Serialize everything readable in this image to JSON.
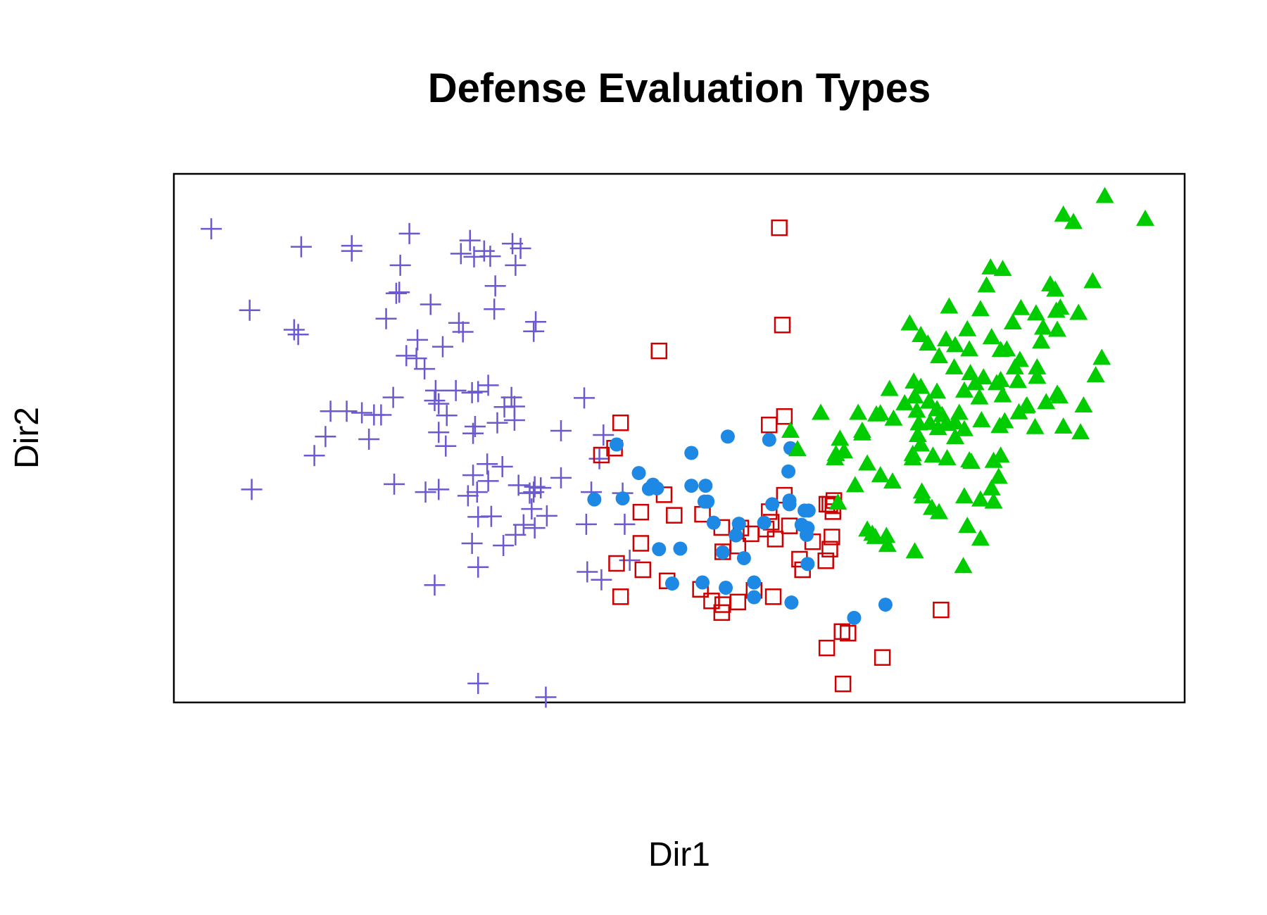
{
  "chart_data": {
    "type": "scatter",
    "title": "Defense Evaluation Types",
    "xlabel": "Dir1",
    "ylabel": "Dir2",
    "xlim": [
      0,
      1000
    ],
    "ylim": [
      0,
      1000
    ],
    "axes_ticks_shown": false,
    "grid": false,
    "legend": "none",
    "series": [
      {
        "marker": "plus",
        "color": "#6A5ACD",
        "points": [
          [
            37,
            896
          ],
          [
            126,
            862
          ],
          [
            176,
            864
          ],
          [
            176,
            854
          ],
          [
            233,
            887
          ],
          [
            284,
            849
          ],
          [
            293,
            874
          ],
          [
            297,
            843
          ],
          [
            307,
            854
          ],
          [
            313,
            844
          ],
          [
            335,
            868
          ],
          [
            343,
            859
          ],
          [
            338,
            827
          ],
          [
            224,
            827
          ],
          [
            220,
            774
          ],
          [
            223,
            776
          ],
          [
            318,
            788
          ],
          [
            75,
            742
          ],
          [
            119,
            705
          ],
          [
            123,
            696
          ],
          [
            210,
            726
          ],
          [
            254,
            753
          ],
          [
            266,
            673
          ],
          [
            282,
            718
          ],
          [
            286,
            701
          ],
          [
            317,
            744
          ],
          [
            358,
            720
          ],
          [
            356,
            702
          ],
          [
            241,
            686
          ],
          [
            230,
            656
          ],
          [
            240,
            651
          ],
          [
            248,
            631
          ],
          [
            279,
            590
          ],
          [
            259,
            590
          ],
          [
            258,
            571
          ],
          [
            262,
            565
          ],
          [
            295,
            586
          ],
          [
            301,
            588
          ],
          [
            311,
            600
          ],
          [
            337,
            560
          ],
          [
            327,
            559
          ],
          [
            296,
            509
          ],
          [
            320,
            529
          ],
          [
            337,
            534
          ],
          [
            334,
            577
          ],
          [
            270,
            543
          ],
          [
            262,
            511
          ],
          [
            269,
            485
          ],
          [
            217,
            577
          ],
          [
            205,
            544
          ],
          [
            186,
            548
          ],
          [
            198,
            544
          ],
          [
            193,
            498
          ],
          [
            171,
            551
          ],
          [
            155,
            551
          ],
          [
            150,
            503
          ],
          [
            139,
            467
          ],
          [
            77,
            403
          ],
          [
            218,
            413
          ],
          [
            249,
            398
          ],
          [
            262,
            403
          ],
          [
            291,
            391
          ],
          [
            300,
            398
          ],
          [
            310,
            451
          ],
          [
            325,
            446
          ],
          [
            341,
            411
          ],
          [
            356,
            398
          ],
          [
            383,
            425
          ],
          [
            363,
            406
          ],
          [
            369,
            353
          ],
          [
            357,
            330
          ],
          [
            346,
            336
          ],
          [
            301,
            351
          ],
          [
            295,
            301
          ],
          [
            314,
            352
          ],
          [
            258,
            222
          ],
          [
            301,
            256
          ],
          [
            326,
            297
          ],
          [
            338,
            317
          ],
          [
            354,
            366
          ],
          [
            383,
            514
          ],
          [
            421,
            461
          ],
          [
            425,
            506
          ],
          [
            406,
            576
          ],
          [
            413,
            398
          ],
          [
            408,
            337
          ],
          [
            444,
            396
          ],
          [
            446,
            337
          ],
          [
            451,
            269
          ],
          [
            409,
            247
          ],
          [
            423,
            232
          ],
          [
            301,
            36
          ],
          [
            368,
            10
          ],
          [
            298,
            522
          ],
          [
            296,
            430
          ],
          [
            311,
            419
          ],
          [
            357,
            408
          ],
          [
            352,
            396
          ]
        ]
      },
      {
        "marker": "square",
        "color": "#CC0000",
        "points": [
          [
            599,
            898
          ],
          [
            602,
            714
          ],
          [
            480,
            665
          ],
          [
            442,
            529
          ],
          [
            423,
            468
          ],
          [
            436,
            481
          ],
          [
            485,
            393
          ],
          [
            462,
            360
          ],
          [
            495,
            354
          ],
          [
            462,
            301
          ],
          [
            438,
            263
          ],
          [
            464,
            251
          ],
          [
            488,
            230
          ],
          [
            442,
            200
          ],
          [
            523,
            356
          ],
          [
            589,
            525
          ],
          [
            604,
            541
          ],
          [
            542,
            331
          ],
          [
            561,
            330
          ],
          [
            571,
            319
          ],
          [
            543,
            285
          ],
          [
            558,
            296
          ],
          [
            589,
            361
          ],
          [
            619,
            271
          ],
          [
            646,
            375
          ],
          [
            652,
            372
          ],
          [
            604,
            392
          ],
          [
            649,
            375
          ],
          [
            652,
            361
          ],
          [
            651,
            313
          ],
          [
            586,
            328
          ],
          [
            591,
            341
          ],
          [
            649,
            290
          ],
          [
            645,
            268
          ],
          [
            632,
            304
          ],
          [
            574,
            212
          ],
          [
            521,
            214
          ],
          [
            532,
            192
          ],
          [
            558,
            190
          ],
          [
            646,
            103
          ],
          [
            661,
            134
          ],
          [
            667,
            131
          ],
          [
            701,
            85
          ],
          [
            593,
            200
          ],
          [
            622,
            251
          ],
          [
            759,
            175
          ],
          [
            662,
            35
          ],
          [
            542,
            170
          ],
          [
            543,
            185
          ],
          [
            595,
            309
          ],
          [
            609,
            334
          ],
          [
            653,
            382
          ]
        ]
      },
      {
        "marker": "circle",
        "color": "#1E88E5",
        "points": [
          [
            438,
            488
          ],
          [
            548,
            503
          ],
          [
            512,
            472
          ],
          [
            589,
            497
          ],
          [
            610,
            481
          ],
          [
            512,
            410
          ],
          [
            526,
            410
          ],
          [
            608,
            437
          ],
          [
            460,
            434
          ],
          [
            528,
            380
          ],
          [
            474,
            412
          ],
          [
            470,
            404
          ],
          [
            444,
            386
          ],
          [
            480,
            290
          ],
          [
            556,
            316
          ],
          [
            543,
            284
          ],
          [
            609,
            375
          ],
          [
            621,
            336
          ],
          [
            628,
            363
          ],
          [
            592,
            375
          ],
          [
            609,
            382
          ],
          [
            559,
            338
          ],
          [
            501,
            291
          ],
          [
            493,
            225
          ],
          [
            564,
            273
          ],
          [
            574,
            227
          ],
          [
            626,
            317
          ],
          [
            627,
            262
          ],
          [
            627,
            330
          ],
          [
            624,
            363
          ],
          [
            584,
            340
          ],
          [
            574,
            199
          ],
          [
            523,
            227
          ],
          [
            546,
            217
          ],
          [
            611,
            189
          ],
          [
            673,
            160
          ],
          [
            704,
            185
          ],
          [
            525,
            380
          ],
          [
            534,
            340
          ],
          [
            416,
            384
          ],
          [
            478,
            405
          ]
        ]
      },
      {
        "marker": "triangle",
        "color": "#00CC00",
        "points": [
          [
            921,
            958
          ],
          [
            880,
            923
          ],
          [
            890,
            909
          ],
          [
            961,
            915
          ],
          [
            808,
            823
          ],
          [
            820,
            820
          ],
          [
            909,
            797
          ],
          [
            867,
            791
          ],
          [
            804,
            789
          ],
          [
            872,
            781
          ],
          [
            877,
            747
          ],
          [
            838,
            746
          ],
          [
            767,
            749
          ],
          [
            798,
            744
          ],
          [
            853,
            736
          ],
          [
            830,
            719
          ],
          [
            764,
            687
          ],
          [
            874,
            705
          ],
          [
            809,
            691
          ],
          [
            772,
            634
          ],
          [
            854,
            634
          ],
          [
            837,
            648
          ],
          [
            860,
            709
          ],
          [
            912,
            619
          ],
          [
            918,
            652
          ],
          [
            874,
            584
          ],
          [
            832,
            634
          ],
          [
            801,
            615
          ],
          [
            814,
            604
          ],
          [
            793,
            604
          ],
          [
            788,
            623
          ],
          [
            787,
            668
          ],
          [
            818,
            667
          ],
          [
            785,
            706
          ],
          [
            773,
            676
          ],
          [
            757,
            655
          ],
          [
            739,
            695
          ],
          [
            746,
            679
          ],
          [
            728,
            717
          ],
          [
            797,
            577
          ],
          [
            854,
            616
          ],
          [
            876,
            579
          ],
          [
            820,
            581
          ],
          [
            799,
            534
          ],
          [
            817,
            523
          ],
          [
            852,
            521
          ],
          [
            844,
            562
          ],
          [
            836,
            549
          ],
          [
            777,
            548
          ],
          [
            773,
            530
          ],
          [
            782,
            517
          ],
          [
            755,
            555
          ],
          [
            736,
            506
          ],
          [
            737,
            528
          ],
          [
            723,
            566
          ],
          [
            747,
            569
          ],
          [
            755,
            588
          ],
          [
            739,
            597
          ],
          [
            732,
            607
          ],
          [
            782,
            590
          ],
          [
            708,
            593
          ],
          [
            699,
            547
          ],
          [
            695,
            545
          ],
          [
            677,
            548
          ],
          [
            681,
            509
          ],
          [
            659,
            499
          ],
          [
            663,
            475
          ],
          [
            686,
            452
          ],
          [
            699,
            430
          ],
          [
            731,
            462
          ],
          [
            751,
            467
          ],
          [
            731,
            470
          ],
          [
            739,
            488
          ],
          [
            764,
            527
          ],
          [
            765,
            462
          ],
          [
            787,
            458
          ],
          [
            789,
            455
          ],
          [
            811,
            457
          ],
          [
            818,
            467
          ],
          [
            711,
            418
          ],
          [
            674,
            411
          ],
          [
            657,
            378
          ],
          [
            694,
            313
          ],
          [
            705,
            315
          ],
          [
            740,
            399
          ],
          [
            741,
            390
          ],
          [
            757,
            360
          ],
          [
            798,
            384
          ],
          [
            816,
            427
          ],
          [
            809,
            405
          ],
          [
            782,
            390
          ],
          [
            785,
            334
          ],
          [
            798,
            310
          ],
          [
            781,
            258
          ],
          [
            733,
            286
          ],
          [
            706,
            298
          ],
          [
            686,
            327
          ],
          [
            691,
            319
          ],
          [
            750,
            368
          ],
          [
            811,
            380
          ],
          [
            773,
            502
          ],
          [
            712,
            537
          ],
          [
            818,
            610
          ],
          [
            843,
            560
          ],
          [
            822,
            532
          ],
          [
            733,
            579
          ],
          [
            748,
            529
          ],
          [
            756,
            519
          ],
          [
            760,
            544
          ],
          [
            681,
            514
          ],
          [
            735,
            552
          ],
          [
            655,
            470
          ],
          [
            640,
            548
          ],
          [
            654,
            462
          ],
          [
            617,
            479
          ],
          [
            610,
            514
          ],
          [
            835,
            608
          ],
          [
            858,
            683
          ],
          [
            873,
            741
          ],
          [
            895,
            737
          ],
          [
            824,
            668
          ],
          [
            863,
            568
          ],
          [
            900,
            562
          ],
          [
            897,
            511
          ],
          [
            880,
            522
          ]
        ]
      }
    ]
  }
}
